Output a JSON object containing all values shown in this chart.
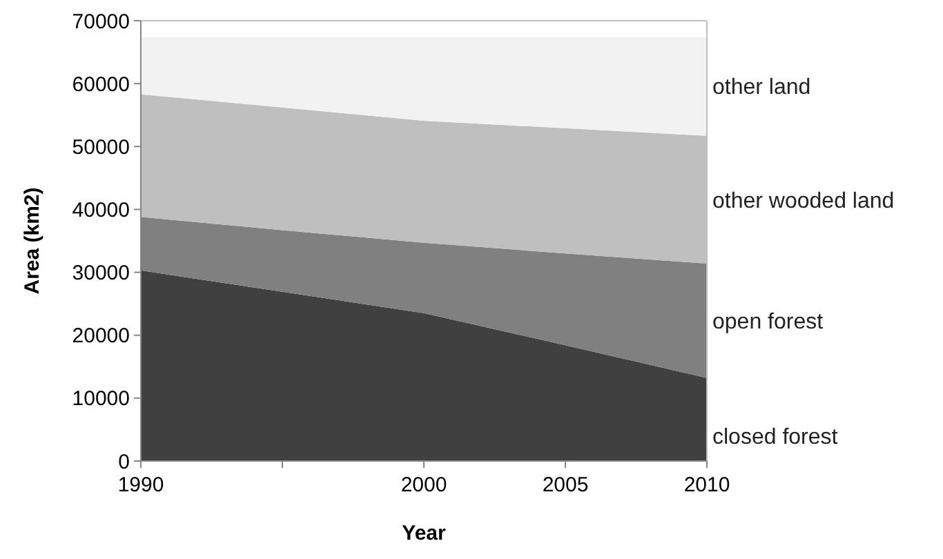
{
  "chart_data": {
    "type": "area",
    "stacked": true,
    "xlabel": "Year",
    "ylabel": "Area (km2)",
    "categories": [
      "1990",
      null,
      "2000",
      "2005",
      "2010"
    ],
    "ylim": [
      0,
      70000
    ],
    "yticks": [
      0,
      10000,
      20000,
      30000,
      40000,
      50000,
      60000,
      70000
    ],
    "grid": false,
    "legend": false,
    "series": [
      {
        "name": "closed forest",
        "color": "#404040",
        "values": [
          30300,
          26900,
          23500,
          18400,
          13200
        ]
      },
      {
        "name": "open forest",
        "color": "#808080",
        "values": [
          8500,
          9800,
          11200,
          14600,
          18200
        ]
      },
      {
        "name": "other wooded land",
        "color": "#bfbfbf",
        "values": [
          19500,
          19500,
          19400,
          19900,
          20300
        ]
      },
      {
        "name": "other land",
        "color": "#f2f2f2",
        "values": [
          9100,
          11200,
          13300,
          14500,
          15700
        ]
      }
    ]
  }
}
